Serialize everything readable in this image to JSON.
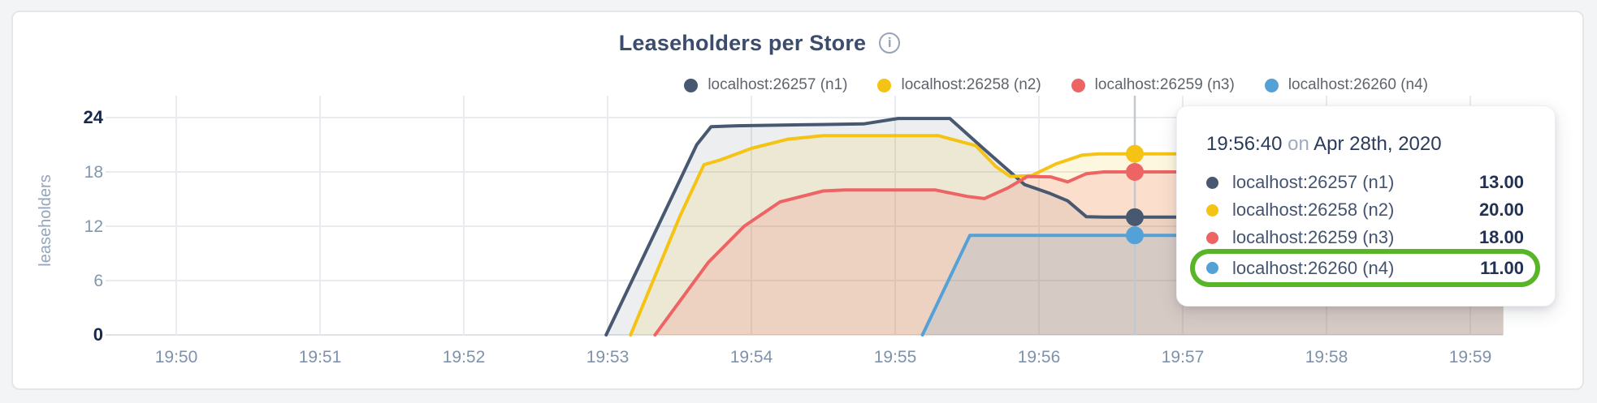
{
  "header": {
    "title": "Leaseholders per Store",
    "info_glyph": "i"
  },
  "tooltip": {
    "time": "19:56:40",
    "on_word": "on",
    "date": "Apr 28th, 2020",
    "highlight_color": "#58b527",
    "rows": [
      {
        "name": "localhost:26257 (n1)",
        "value": "13.00",
        "color": "#475870",
        "highlighted": false
      },
      {
        "name": "localhost:26258 (n2)",
        "value": "20.00",
        "color": "#f5c313",
        "highlighted": false
      },
      {
        "name": "localhost:26259 (n3)",
        "value": "18.00",
        "color": "#ee6465",
        "highlighted": false
      },
      {
        "name": "localhost:26260 (n4)",
        "value": "11.00",
        "color": "#54a1d7",
        "highlighted": true
      }
    ]
  },
  "chart_data": {
    "type": "area",
    "title": "Leaseholders per Store",
    "xlabel": "",
    "ylabel": "leaseholders",
    "ylim": [
      0,
      24
    ],
    "grid": true,
    "legend_position": "top",
    "x_unit": "minutes after 19:50",
    "x_ticks": [
      {
        "t": 0,
        "label": "19:50"
      },
      {
        "t": 1,
        "label": "19:51"
      },
      {
        "t": 2,
        "label": "19:52"
      },
      {
        "t": 3,
        "label": "19:53"
      },
      {
        "t": 4,
        "label": "19:54"
      },
      {
        "t": 5,
        "label": "19:55"
      },
      {
        "t": 6,
        "label": "19:56"
      },
      {
        "t": 7,
        "label": "19:57"
      },
      {
        "t": 8,
        "label": "19:58"
      },
      {
        "t": 9,
        "label": "19:59"
      }
    ],
    "y_ticks": [
      {
        "v": 0,
        "label": "0",
        "major": true
      },
      {
        "v": 6,
        "label": "6",
        "major": false
      },
      {
        "v": 12,
        "label": "12",
        "major": false
      },
      {
        "v": 18,
        "label": "18",
        "major": false
      },
      {
        "v": 24,
        "label": "24",
        "major": true
      }
    ],
    "series": [
      {
        "name": "localhost:26257 (n1)",
        "color": "#475870",
        "fill_opacity": 0.1,
        "points": [
          [
            2.99,
            0
          ],
          [
            3.35,
            12
          ],
          [
            3.62,
            21
          ],
          [
            3.72,
            23
          ],
          [
            3.9,
            23.1
          ],
          [
            4.35,
            23.2
          ],
          [
            4.78,
            23.3
          ],
          [
            5.02,
            23.9
          ],
          [
            5.38,
            23.9
          ],
          [
            5.62,
            20.5
          ],
          [
            5.9,
            16.6
          ],
          [
            6.08,
            15.6
          ],
          [
            6.2,
            14.8
          ],
          [
            6.33,
            13.05
          ],
          [
            6.45,
            13
          ],
          [
            9.23,
            13
          ]
        ]
      },
      {
        "name": "localhost:26258 (n2)",
        "color": "#f5c313",
        "fill_opacity": 0.13,
        "points": [
          [
            3.16,
            0
          ],
          [
            3.5,
            13
          ],
          [
            3.67,
            18.8
          ],
          [
            3.78,
            19.3
          ],
          [
            4.0,
            20.6
          ],
          [
            4.25,
            21.6
          ],
          [
            4.5,
            22
          ],
          [
            5.3,
            22
          ],
          [
            5.56,
            20.9
          ],
          [
            5.7,
            18.6
          ],
          [
            5.8,
            17.5
          ],
          [
            5.95,
            17.6
          ],
          [
            6.12,
            18.9
          ],
          [
            6.3,
            19.85
          ],
          [
            6.42,
            20
          ],
          [
            9.23,
            20
          ]
        ]
      },
      {
        "name": "localhost:26259 (n3)",
        "color": "#ee6465",
        "fill_opacity": 0.16,
        "points": [
          [
            3.33,
            0
          ],
          [
            3.7,
            8
          ],
          [
            3.95,
            12
          ],
          [
            4.2,
            14.7
          ],
          [
            4.5,
            15.9
          ],
          [
            4.65,
            16
          ],
          [
            5.28,
            16
          ],
          [
            5.5,
            15.3
          ],
          [
            5.62,
            15.05
          ],
          [
            5.78,
            16.2
          ],
          [
            5.92,
            17.5
          ],
          [
            6.08,
            17.45
          ],
          [
            6.2,
            16.9
          ],
          [
            6.33,
            17.8
          ],
          [
            6.45,
            18
          ],
          [
            9.23,
            18
          ]
        ]
      },
      {
        "name": "localhost:26260 (n4)",
        "color": "#54a1d7",
        "fill_opacity": 0.15,
        "points": [
          [
            5.19,
            0
          ],
          [
            5.52,
            11
          ],
          [
            9.23,
            11
          ]
        ]
      }
    ],
    "hover": {
      "time_label": "19:56:40",
      "t": 6.6667,
      "values": [
        13,
        20,
        18,
        11
      ]
    }
  }
}
